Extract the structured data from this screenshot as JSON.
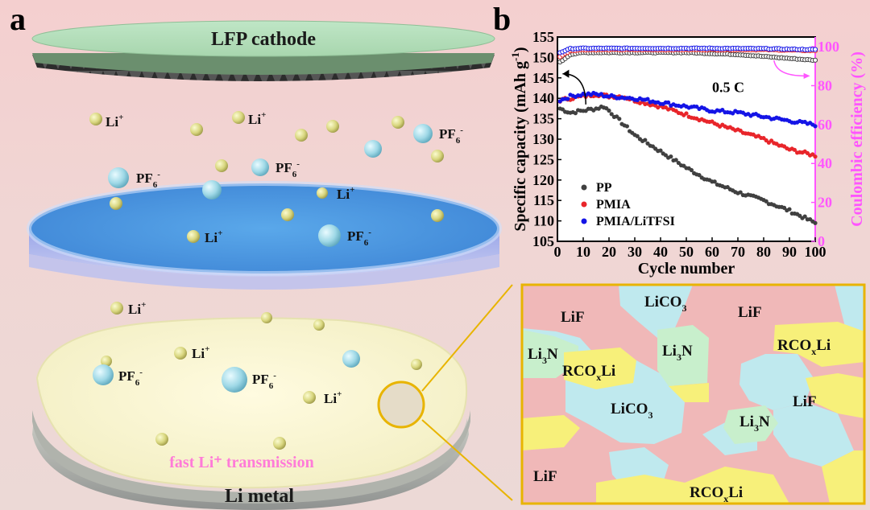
{
  "panels": {
    "a": "a",
    "b": "b"
  },
  "schematic": {
    "cathode_label": "LFP cathode",
    "anode_label": "Li metal",
    "transmission_label": "fast Li⁺ transmission",
    "li_ion": "Li",
    "li_sup": "+",
    "pf6": "PF",
    "pf6_sub": "6",
    "pf6_sup": "-"
  },
  "sei": {
    "LiF": "LiF",
    "LiCO3_base": "LiCO",
    "LiCO3_sub": "3",
    "Li3N_a": "Li",
    "Li3N_sub": "3",
    "Li3N_b": "N",
    "RCOxLi_a": "RCO",
    "RCOxLi_sub": "x",
    "RCOxLi_b": "Li",
    "colors": {
      "LiF": "#f0b8b8",
      "LiCO3": "#bfe9ee",
      "Li3N": "#c8efcc",
      "RCOxLi": "#f7f07a",
      "border": "#e8b400"
    }
  },
  "chart_data": {
    "type": "scatter",
    "xlabel": "Cycle number",
    "ylabel": "Specific capacity (mAh g",
    "ylabel_sup": "-1",
    "ylabel_end": ")",
    "y2label": "Coulombic efficiency (%)",
    "xlim": [
      0,
      100
    ],
    "ylim": [
      105,
      155
    ],
    "y2lim": [
      0,
      105
    ],
    "xticks": [
      0,
      10,
      20,
      30,
      40,
      50,
      60,
      70,
      80,
      90,
      100
    ],
    "yticks": [
      105,
      110,
      115,
      120,
      125,
      130,
      135,
      140,
      145,
      150,
      155
    ],
    "y2ticks": [
      0,
      20,
      40,
      60,
      80,
      100
    ],
    "annotation": "0.5 C",
    "legend_position": "bottom-left",
    "colors": {
      "PP": "#404040",
      "PMIA": "#e8252a",
      "PMIA/LiTFSI": "#1414e6",
      "axis2": "#ff55ff"
    },
    "series": [
      {
        "name": "PP",
        "axis": "capacity",
        "points": [
          [
            1,
            137.5
          ],
          [
            5,
            136.5
          ],
          [
            10,
            137
          ],
          [
            15,
            137.5
          ],
          [
            18,
            138
          ],
          [
            20,
            137
          ],
          [
            25,
            134
          ],
          [
            30,
            131
          ],
          [
            40,
            127
          ],
          [
            50,
            123
          ],
          [
            60,
            119.5
          ],
          [
            70,
            117
          ],
          [
            80,
            115
          ],
          [
            90,
            112.5
          ],
          [
            100,
            109.5
          ]
        ]
      },
      {
        "name": "PMIA",
        "axis": "capacity",
        "points": [
          [
            1,
            139.5
          ],
          [
            5,
            140
          ],
          [
            10,
            140.5
          ],
          [
            15,
            141
          ],
          [
            20,
            140.5
          ],
          [
            25,
            140.5
          ],
          [
            30,
            139.5
          ],
          [
            40,
            138
          ],
          [
            50,
            136
          ],
          [
            60,
            134
          ],
          [
            70,
            132
          ],
          [
            80,
            130
          ],
          [
            90,
            127.5
          ],
          [
            100,
            126
          ]
        ]
      },
      {
        "name": "PMIA/LiTFSI",
        "axis": "capacity",
        "points": [
          [
            1,
            139.5
          ],
          [
            5,
            140.5
          ],
          [
            10,
            141
          ],
          [
            15,
            141
          ],
          [
            20,
            140.5
          ],
          [
            30,
            140
          ],
          [
            40,
            139
          ],
          [
            50,
            138
          ],
          [
            60,
            137
          ],
          [
            70,
            136.5
          ],
          [
            80,
            135.5
          ],
          [
            90,
            134.5
          ],
          [
            100,
            133.5
          ]
        ]
      },
      {
        "name": "PP CE",
        "axis": "efficiency",
        "points": [
          [
            1,
            92
          ],
          [
            5,
            96
          ],
          [
            10,
            97
          ],
          [
            20,
            97
          ],
          [
            30,
            97
          ],
          [
            40,
            97
          ],
          [
            50,
            97
          ],
          [
            60,
            96.5
          ],
          [
            70,
            96
          ],
          [
            80,
            95
          ],
          [
            90,
            94
          ],
          [
            100,
            93
          ]
        ]
      },
      {
        "name": "PMIA CE",
        "axis": "efficiency",
        "points": [
          [
            1,
            95
          ],
          [
            5,
            98
          ],
          [
            10,
            98.5
          ],
          [
            20,
            98.5
          ],
          [
            40,
            98.5
          ],
          [
            60,
            98.5
          ],
          [
            80,
            98.5
          ],
          [
            100,
            98
          ]
        ]
      },
      {
        "name": "PMIA/LiTFSI CE",
        "axis": "efficiency",
        "points": [
          [
            1,
            97
          ],
          [
            5,
            99
          ],
          [
            10,
            99.2
          ],
          [
            20,
            99.2
          ],
          [
            40,
            99.2
          ],
          [
            60,
            99.2
          ],
          [
            80,
            99
          ],
          [
            100,
            98.5
          ]
        ]
      }
    ]
  }
}
